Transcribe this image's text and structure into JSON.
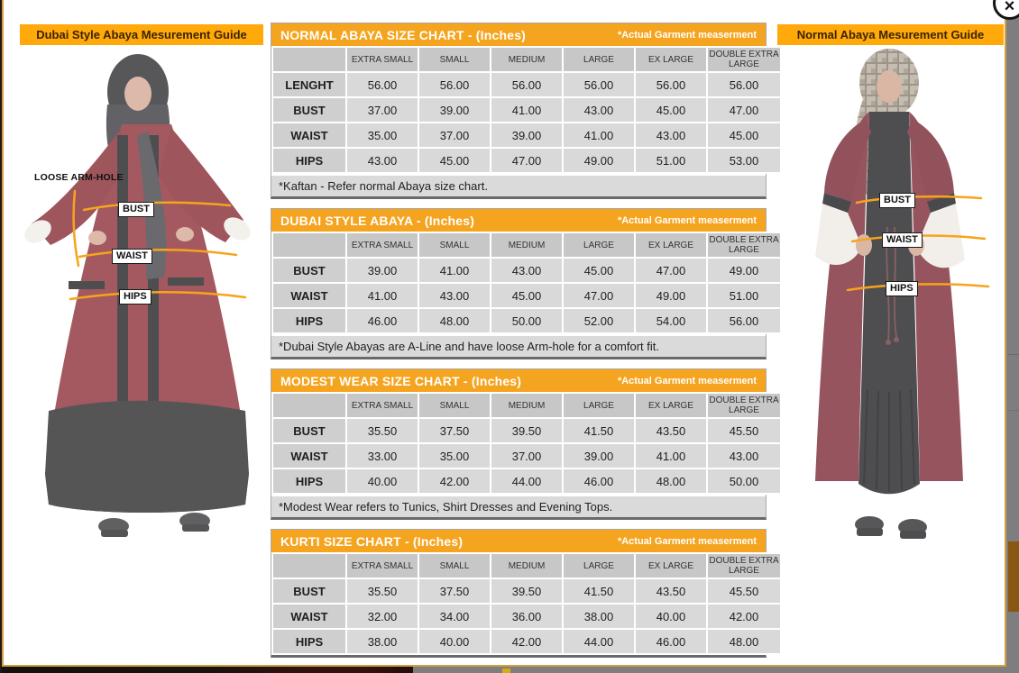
{
  "window": {
    "close_icon": "×"
  },
  "left_panel": {
    "title": "Dubai Style Abaya Mesurement Guide",
    "armhole_label": "LOOSE ARM-HOLE",
    "bust_label": "BUST",
    "waist_label": "WAIST",
    "hips_label": "HIPS"
  },
  "right_panel": {
    "title": "Normal Abaya Mesurement Guide",
    "bust_label": "BUST",
    "waist_label": "WAIST",
    "hips_label": "HIPS"
  },
  "size_columns": [
    "EXTRA SMALL",
    "SMALL",
    "MEDIUM",
    "LARGE",
    "EX LARGE",
    "DOUBLE EXTRA LARGE"
  ],
  "tables": [
    {
      "title": "NORMAL ABAYA SIZE CHART - (Inches)",
      "subtitle": "*Actual Garment measerment",
      "rows": [
        {
          "label": "LENGHT",
          "values": [
            "56.00",
            "56.00",
            "56.00",
            "56.00",
            "56.00",
            "56.00"
          ]
        },
        {
          "label": "BUST",
          "values": [
            "37.00",
            "39.00",
            "41.00",
            "43.00",
            "45.00",
            "47.00"
          ]
        },
        {
          "label": "WAIST",
          "values": [
            "35.00",
            "37.00",
            "39.00",
            "41.00",
            "43.00",
            "45.00"
          ]
        },
        {
          "label": "HIPS",
          "values": [
            "43.00",
            "45.00",
            "47.00",
            "49.00",
            "51.00",
            "53.00"
          ]
        }
      ],
      "note": "*Kaftan - Refer normal Abaya size chart."
    },
    {
      "title": "DUBAI STYLE ABAYA - (Inches)",
      "subtitle": "*Actual Garment measerment",
      "rows": [
        {
          "label": "BUST",
          "values": [
            "39.00",
            "41.00",
            "43.00",
            "45.00",
            "47.00",
            "49.00"
          ]
        },
        {
          "label": "WAIST",
          "values": [
            "41.00",
            "43.00",
            "45.00",
            "47.00",
            "49.00",
            "51.00"
          ]
        },
        {
          "label": "HIPS",
          "values": [
            "46.00",
            "48.00",
            "50.00",
            "52.00",
            "54.00",
            "56.00"
          ]
        }
      ],
      "note": "*Dubai Style Abayas are A-Line and have loose Arm-hole for a comfort fit."
    },
    {
      "title": "MODEST WEAR SIZE CHART - (Inches)",
      "subtitle": "*Actual Garment measerment",
      "rows": [
        {
          "label": "BUST",
          "values": [
            "35.50",
            "37.50",
            "39.50",
            "41.50",
            "43.50",
            "45.50"
          ]
        },
        {
          "label": "WAIST",
          "values": [
            "33.00",
            "35.00",
            "37.00",
            "39.00",
            "41.00",
            "43.00"
          ]
        },
        {
          "label": "HIPS",
          "values": [
            "40.00",
            "42.00",
            "44.00",
            "46.00",
            "48.00",
            "50.00"
          ]
        }
      ],
      "note": "*Modest Wear refers to Tunics, Shirt Dresses and Evening Tops."
    },
    {
      "title": "KURTI SIZE CHART - (Inches)",
      "subtitle": "*Actual Garment measerment",
      "rows": [
        {
          "label": "BUST",
          "values": [
            "35.50",
            "37.50",
            "39.50",
            "41.50",
            "43.50",
            "45.50"
          ]
        },
        {
          "label": "WAIST",
          "values": [
            "32.00",
            "34.00",
            "36.00",
            "38.00",
            "40.00",
            "42.00"
          ]
        },
        {
          "label": "HIPS",
          "values": [
            "38.00",
            "40.00",
            "42.00",
            "44.00",
            "46.00",
            "48.00"
          ]
        }
      ],
      "note": null
    }
  ],
  "colors": {
    "guide_bar_orange": "#ffa90a",
    "table_header_orange": "#f5a41f",
    "measure_line_orange": "#f7a41d",
    "abaya_maroon": "#8d3038",
    "modal_border_tan": "#d19e43"
  }
}
